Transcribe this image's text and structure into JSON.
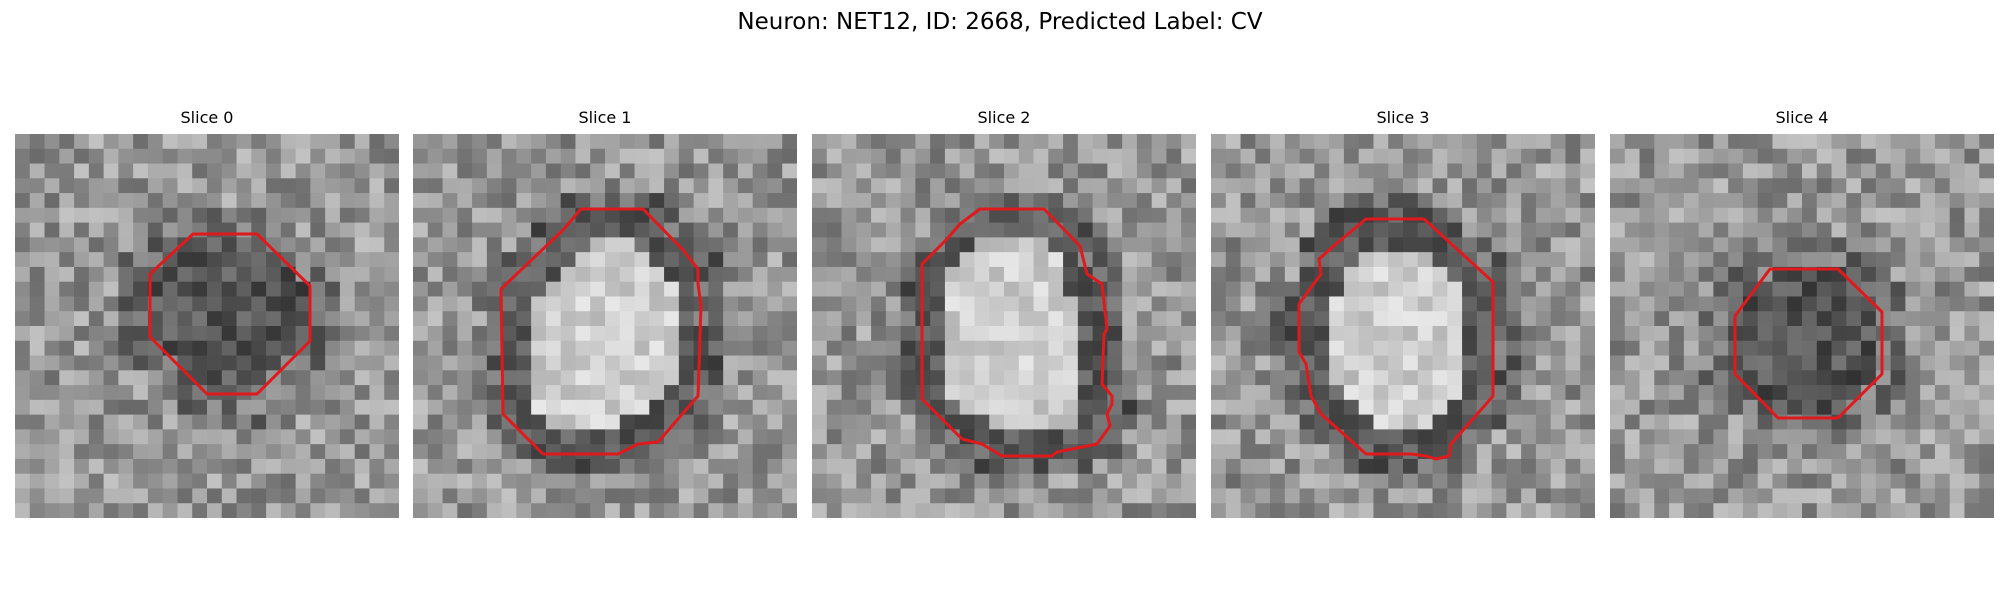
{
  "figure": {
    "title": "Neuron: NET12, ID: 2668, Predicted Label: CV"
  },
  "panels": [
    {
      "title": "Slice 0",
      "center_tone": "dark",
      "contour_color": "#e0191c"
    },
    {
      "title": "Slice 1",
      "center_tone": "bright",
      "contour_color": "#e0191c"
    },
    {
      "title": "Slice 2",
      "center_tone": "bright",
      "contour_color": "#e0191c"
    },
    {
      "title": "Slice 3",
      "center_tone": "bright",
      "contour_color": "#e0191c"
    },
    {
      "title": "Slice 4",
      "center_tone": "dark",
      "contour_color": "#e0191c"
    }
  ]
}
